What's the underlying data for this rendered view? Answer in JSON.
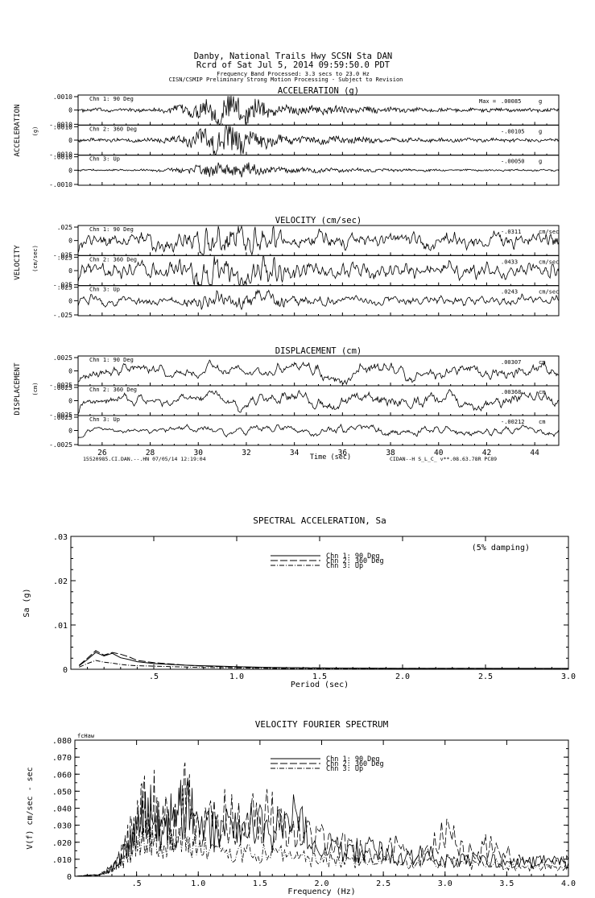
{
  "header": {
    "line1": "Danby, National Trails Hwy    SCSN Sta DAN",
    "line2": "Rcrd of Sat Jul  5, 2014 09:59:50.0 PDT",
    "line3": "Frequency Band Processed: 3.3 secs to 23.0 Hz",
    "line4": "CISN/CSMIP Preliminary Strong Motion Processing - Subject to Revision"
  },
  "footer": {
    "left": "15520985.CI.DAN.--.HN 07/05/14 12:19:04",
    "right": "CIDAN--H  S_L_C_  v**.08.63.78R PC89"
  },
  "chart_data": [
    {
      "type": "line",
      "title": "ACCELERATION (g)",
      "ylabel": "ACCELERATION",
      "yunit": "(g)",
      "xlabel": "Time (sec)",
      "xlim": [
        25,
        45
      ],
      "xticks": [
        "26",
        "28",
        "30",
        "32",
        "34",
        "36",
        "38",
        "40",
        "42",
        "44"
      ],
      "ytick_labels": [
        ".0010",
        "0",
        "-.0010"
      ],
      "peak_unit": "g",
      "channels": [
        {
          "name": "Chn 1: 90 Deg",
          "peak_prefix": "Max =",
          "peak": ".00085",
          "ylim": [
            -0.001,
            0.001
          ]
        },
        {
          "name": "Chn 2: 360 Deg",
          "peak_prefix": "",
          "peak": "-.00105",
          "ylim": [
            -0.001,
            0.001
          ]
        },
        {
          "name": "Chn 3: Up",
          "peak_prefix": "",
          "peak": "-.00050",
          "ylim": [
            -0.001,
            0.001
          ]
        }
      ]
    },
    {
      "type": "line",
      "title": "VELOCITY (cm/sec)",
      "ylabel": "VELOCITY",
      "yunit": "(cm/sec)",
      "xlim": [
        25,
        45
      ],
      "ytick_labels": [
        ".025",
        "0",
        "-.025"
      ],
      "peak_unit": "cm/sec",
      "channels": [
        {
          "name": "Chn 1: 90 Deg",
          "peak_prefix": "",
          "peak": "-.0311",
          "ylim": [
            -0.025,
            0.025
          ]
        },
        {
          "name": "Chn 2: 360 Deg",
          "peak_prefix": "",
          "peak": ".0433",
          "ylim": [
            -0.025,
            0.025
          ]
        },
        {
          "name": "Chn 3: Up",
          "peak_prefix": "",
          "peak": ".0243",
          "ylim": [
            -0.025,
            0.025
          ]
        }
      ]
    },
    {
      "type": "line",
      "title": "DISPLACEMENT (cm)",
      "ylabel": "DISPLACEMENT",
      "yunit": "(cm)",
      "xlim": [
        25,
        45
      ],
      "ytick_labels": [
        ".0025",
        "0",
        "-.0025"
      ],
      "peak_unit": "cm",
      "channels": [
        {
          "name": "Chn 1: 90 Deg",
          "peak_prefix": "",
          "peak": ".00307",
          "ylim": [
            -0.0025,
            0.0025
          ]
        },
        {
          "name": "Chn 2: 360 Deg",
          "peak_prefix": "",
          "peak": ".00368",
          "ylim": [
            -0.0025,
            0.0025
          ]
        },
        {
          "name": "Chn 3: Up",
          "peak_prefix": "",
          "peak": "-.00212",
          "ylim": [
            -0.0025,
            0.0025
          ]
        }
      ]
    },
    {
      "type": "line",
      "title": "SPECTRAL ACCELERATION, Sa",
      "annotation": "(5% damping)",
      "xlabel": "Period (sec)",
      "ylabel": "Sa (g)",
      "xlim": [
        0,
        3.0
      ],
      "ylim": [
        0,
        0.03
      ],
      "xticks": [
        0.5,
        1.0,
        1.5,
        2.0,
        2.5,
        3.0
      ],
      "xtick_labels": [
        ".5",
        "1.0",
        "1.5",
        "2.0",
        "2.5",
        "3.0"
      ],
      "yticks": [
        0,
        0.01,
        0.02,
        0.03
      ],
      "ytick_labels": [
        "0",
        ".01",
        ".02",
        ".03"
      ],
      "series": [
        {
          "name": "Chn 1: 90 Deg",
          "dash": "solid",
          "x": [
            0.05,
            0.1,
            0.15,
            0.2,
            0.25,
            0.3,
            0.35,
            0.4,
            0.5,
            0.6,
            0.7,
            0.8,
            1.0,
            1.2,
            1.5,
            2.0,
            2.5,
            3.0
          ],
          "y": [
            0.0008,
            0.0022,
            0.0038,
            0.003,
            0.0036,
            0.0026,
            0.0022,
            0.0017,
            0.0013,
            0.0011,
            0.0009,
            0.0008,
            0.0006,
            0.0004,
            0.0003,
            0.0002,
            0.0002,
            0.0002
          ]
        },
        {
          "name": "Chn 2: 360 Deg",
          "dash": "long-dash",
          "x": [
            0.05,
            0.1,
            0.15,
            0.2,
            0.25,
            0.3,
            0.35,
            0.4,
            0.5,
            0.6,
            0.7,
            0.8,
            1.0,
            1.2,
            1.5,
            2.0,
            2.5,
            3.0
          ],
          "y": [
            0.0009,
            0.0025,
            0.0042,
            0.0032,
            0.0038,
            0.0034,
            0.0028,
            0.002,
            0.0015,
            0.0012,
            0.0009,
            0.0007,
            0.0005,
            0.0004,
            0.0003,
            0.0002,
            0.0002,
            0.0001
          ]
        },
        {
          "name": "Chn 3: Up",
          "dash": "dash-dot",
          "x": [
            0.05,
            0.1,
            0.15,
            0.2,
            0.25,
            0.3,
            0.35,
            0.4,
            0.5,
            0.6,
            0.7,
            0.8,
            1.0,
            1.2,
            1.5,
            2.0,
            2.5,
            3.0
          ],
          "y": [
            0.0005,
            0.0013,
            0.002,
            0.0016,
            0.0014,
            0.0011,
            0.0009,
            0.0008,
            0.0007,
            0.0006,
            0.0005,
            0.0004,
            0.0003,
            0.0002,
            0.0001,
            0.0001,
            0.0001,
            0.0001
          ]
        }
      ]
    },
    {
      "type": "line",
      "title": "VELOCITY FOURIER SPECTRUM",
      "corner_label": "fcHaw",
      "xlabel": "Frequency (Hz)",
      "ylabel": "V(f)  cm/sec - sec",
      "xlim": [
        0,
        4.0
      ],
      "ylim": [
        0,
        0.08
      ],
      "xticks": [
        0.5,
        1.0,
        1.5,
        2.0,
        2.5,
        3.0,
        3.5,
        4.0
      ],
      "xtick_labels": [
        ".5",
        "1.0",
        "1.5",
        "2.0",
        "2.5",
        "3.0",
        "3.5",
        "4.0"
      ],
      "yticks": [
        0,
        0.01,
        0.02,
        0.03,
        0.04,
        0.05,
        0.06,
        0.07,
        0.08
      ],
      "ytick_labels": [
        "0",
        ".010",
        ".020",
        ".030",
        ".040",
        ".050",
        ".060",
        ".070",
        ".080"
      ],
      "series": [
        {
          "name": "Chn 1: 90 Deg",
          "dash": "solid",
          "x": [
            0,
            0.2,
            0.3,
            0.4,
            0.5,
            0.6,
            0.7,
            0.8,
            0.9,
            1.0,
            1.2,
            1.4,
            1.6,
            1.8,
            2.0,
            2.2,
            2.4,
            2.6,
            2.8,
            3.0,
            3.2,
            3.4,
            3.6,
            3.8,
            4.0
          ],
          "y": [
            0,
            0.001,
            0.005,
            0.015,
            0.03,
            0.045,
            0.03,
            0.04,
            0.05,
            0.03,
            0.03,
            0.035,
            0.03,
            0.04,
            0.02,
            0.015,
            0.018,
            0.012,
            0.015,
            0.01,
            0.012,
            0.01,
            0.008,
            0.01,
            0.008
          ]
        },
        {
          "name": "Chn 2: 360 Deg",
          "dash": "long-dash",
          "x": [
            0,
            0.2,
            0.3,
            0.4,
            0.5,
            0.6,
            0.7,
            0.8,
            0.9,
            1.0,
            1.2,
            1.4,
            1.6,
            1.8,
            2.0,
            2.2,
            2.4,
            2.6,
            2.8,
            3.0,
            3.2,
            3.4,
            3.6,
            3.8,
            4.0
          ],
          "y": [
            0,
            0.001,
            0.006,
            0.02,
            0.035,
            0.056,
            0.04,
            0.03,
            0.055,
            0.035,
            0.04,
            0.04,
            0.04,
            0.03,
            0.025,
            0.02,
            0.015,
            0.02,
            0.012,
            0.028,
            0.015,
            0.022,
            0.01,
            0.008,
            0.01
          ]
        },
        {
          "name": "Chn 3: Up",
          "dash": "dash-dot",
          "x": [
            0,
            0.2,
            0.3,
            0.4,
            0.5,
            0.6,
            0.7,
            0.8,
            0.9,
            1.0,
            1.2,
            1.4,
            1.6,
            1.8,
            2.0,
            2.2,
            2.4,
            2.6,
            2.8,
            3.0,
            3.2,
            3.4,
            3.6,
            3.8,
            4.0
          ],
          "y": [
            0,
            0.001,
            0.004,
            0.01,
            0.02,
            0.025,
            0.02,
            0.02,
            0.025,
            0.02,
            0.015,
            0.015,
            0.015,
            0.012,
            0.012,
            0.01,
            0.01,
            0.01,
            0.008,
            0.01,
            0.008,
            0.008,
            0.006,
            0.006,
            0.005
          ]
        }
      ]
    }
  ]
}
